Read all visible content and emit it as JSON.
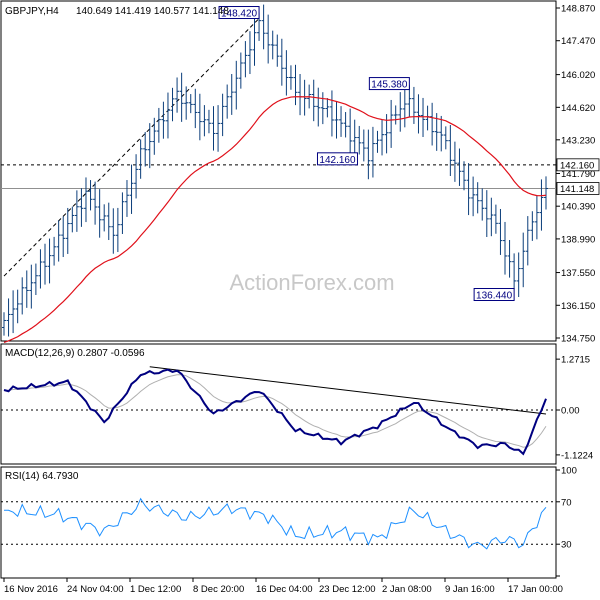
{
  "header": {
    "symbol": "GBPJPY,H4",
    "ohlc": "140.649 141.419 140.577 141.148"
  },
  "watermark": "ActionForex.com",
  "colors": {
    "bar": "#0a3d7a",
    "ema": "#e0101a",
    "macd_line": "#000080",
    "signal_line": "#b0b0b0",
    "rsi_line": "#1e90ff",
    "trendline": "#000000",
    "label_border": "#000080"
  },
  "chart_data": [
    {
      "type": "ohlc",
      "panel": "price",
      "ylim": [
        134.75,
        148.87
      ],
      "y_ticks": [
        "148.870",
        "147.470",
        "146.020",
        "144.620",
        "143.230",
        "141.790",
        "140.390",
        "138.990",
        "137.550",
        "136.150",
        "134.750"
      ],
      "hline_level": 142.16,
      "current_level": 141.148,
      "current_label": "141.148",
      "level_label": "142.160",
      "bars_count": 120,
      "key_points": [
        {
          "bar": 0,
          "close": 135.5
        },
        {
          "bar": 10,
          "close": 138.3
        },
        {
          "bar": 18,
          "close": 140.9
        },
        {
          "bar": 24,
          "close": 139.2
        },
        {
          "bar": 30,
          "close": 142.6
        },
        {
          "bar": 38,
          "close": 145.2
        },
        {
          "bar": 46,
          "close": 143.6
        },
        {
          "bar": 56,
          "close": 148.2
        },
        {
          "bar": 64,
          "close": 145.3
        },
        {
          "bar": 72,
          "close": 144.3
        },
        {
          "bar": 80,
          "close": 142.6
        },
        {
          "bar": 88,
          "close": 144.9
        },
        {
          "bar": 96,
          "close": 143.4
        },
        {
          "bar": 102,
          "close": 141.0
        },
        {
          "bar": 108,
          "close": 139.6
        },
        {
          "bar": 112,
          "close": 137.2
        },
        {
          "bar": 116,
          "close": 139.8
        },
        {
          "bar": 119,
          "close": 141.148
        }
      ],
      "annotations": [
        {
          "text": "148.420",
          "value": 148.42,
          "bar": 56
        },
        {
          "text": "145.380",
          "value": 145.38,
          "bar": 89
        },
        {
          "text": "142.160",
          "value": 142.16,
          "bar": 82
        },
        {
          "text": "136.440",
          "value": 136.44,
          "bar": 112
        }
      ]
    },
    {
      "type": "line",
      "panel": "macd",
      "title": "MACD(12,26,9) 0.2807 -0.0596",
      "ylim": [
        -1.3,
        1.45
      ],
      "y_ticks": [
        "1.2715",
        "0.00",
        "-1.1224"
      ],
      "key_points": [
        {
          "bar": 0,
          "macd": 0.5
        },
        {
          "bar": 14,
          "macd": 0.7
        },
        {
          "bar": 22,
          "macd": -0.3
        },
        {
          "bar": 30,
          "macd": 0.9
        },
        {
          "bar": 38,
          "macd": 1.0
        },
        {
          "bar": 46,
          "macd": -0.1
        },
        {
          "bar": 56,
          "macd": 0.5
        },
        {
          "bar": 64,
          "macd": -0.5
        },
        {
          "bar": 74,
          "macd": -0.8
        },
        {
          "bar": 82,
          "macd": -0.4
        },
        {
          "bar": 90,
          "macd": 0.2
        },
        {
          "bar": 98,
          "macd": -0.5
        },
        {
          "bar": 104,
          "macd": -0.9
        },
        {
          "bar": 110,
          "macd": -0.85
        },
        {
          "bar": 114,
          "macd": -1.1
        },
        {
          "bar": 119,
          "macd": 0.28
        }
      ]
    },
    {
      "type": "line",
      "panel": "rsi",
      "title": "RSI(14) 64.7930",
      "ylim": [
        0,
        100
      ],
      "y_ticks": [
        "100",
        "70",
        "30",
        "0"
      ],
      "key_points": [
        {
          "bar": 0,
          "rsi": 62
        },
        {
          "bar": 12,
          "rsi": 58
        },
        {
          "bar": 22,
          "rsi": 42
        },
        {
          "bar": 30,
          "rsi": 68
        },
        {
          "bar": 40,
          "rsi": 55
        },
        {
          "bar": 50,
          "rsi": 64
        },
        {
          "bar": 58,
          "rsi": 56
        },
        {
          "bar": 64,
          "rsi": 38
        },
        {
          "bar": 74,
          "rsi": 42
        },
        {
          "bar": 82,
          "rsi": 35
        },
        {
          "bar": 90,
          "rsi": 62
        },
        {
          "bar": 98,
          "rsi": 40
        },
        {
          "bar": 104,
          "rsi": 28
        },
        {
          "bar": 110,
          "rsi": 35
        },
        {
          "bar": 114,
          "rsi": 30
        },
        {
          "bar": 119,
          "rsi": 64.79
        }
      ]
    }
  ],
  "x_labels": [
    "16 Nov 2016",
    "24 Nov 04:00",
    "1 Dec 12:00",
    "8 Dec 20:00",
    "16 Dec 04:00",
    "23 Dec 12:00",
    "2 Jan 08:00",
    "9 Jan 16:00",
    "17 Jan 00:00"
  ]
}
